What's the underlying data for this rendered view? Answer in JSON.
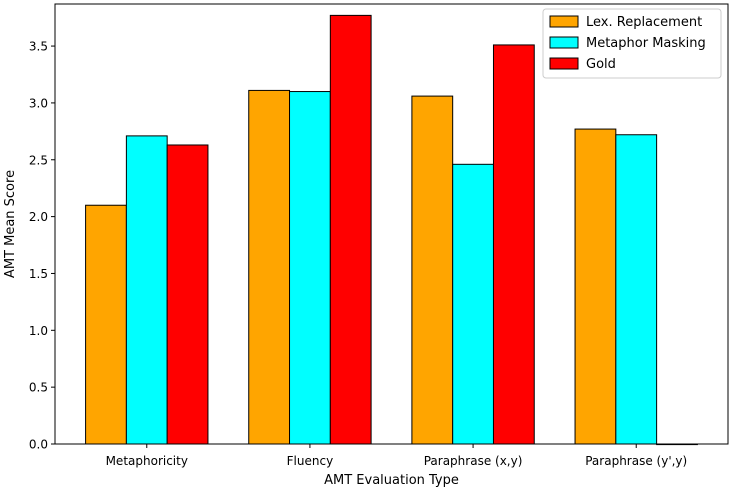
{
  "chart_data": {
    "type": "bar",
    "title": "",
    "xlabel": "AMT Evaluation Type",
    "ylabel": "AMT Mean Score",
    "ylim": [
      0,
      3.87
    ],
    "yticks": [
      "0.0",
      "0.5",
      "1.0",
      "1.5",
      "2.0",
      "2.5",
      "3.0",
      "3.5"
    ],
    "categories": [
      "Metaphoricity",
      "Fluency",
      "Paraphrase (x,y)",
      "Paraphrase (y',y)"
    ],
    "series": [
      {
        "name": "Lex. Replacement",
        "color": "#FFA500",
        "values": [
          2.1,
          3.11,
          3.06,
          2.77
        ]
      },
      {
        "name": "Metaphor Masking",
        "color": "#00FFFF",
        "values": [
          2.71,
          3.1,
          2.46,
          2.72
        ]
      },
      {
        "name": "Gold",
        "color": "#FF0000",
        "values": [
          2.63,
          3.77,
          3.51,
          0
        ]
      }
    ],
    "legend_position": "top-right",
    "grid": false
  }
}
